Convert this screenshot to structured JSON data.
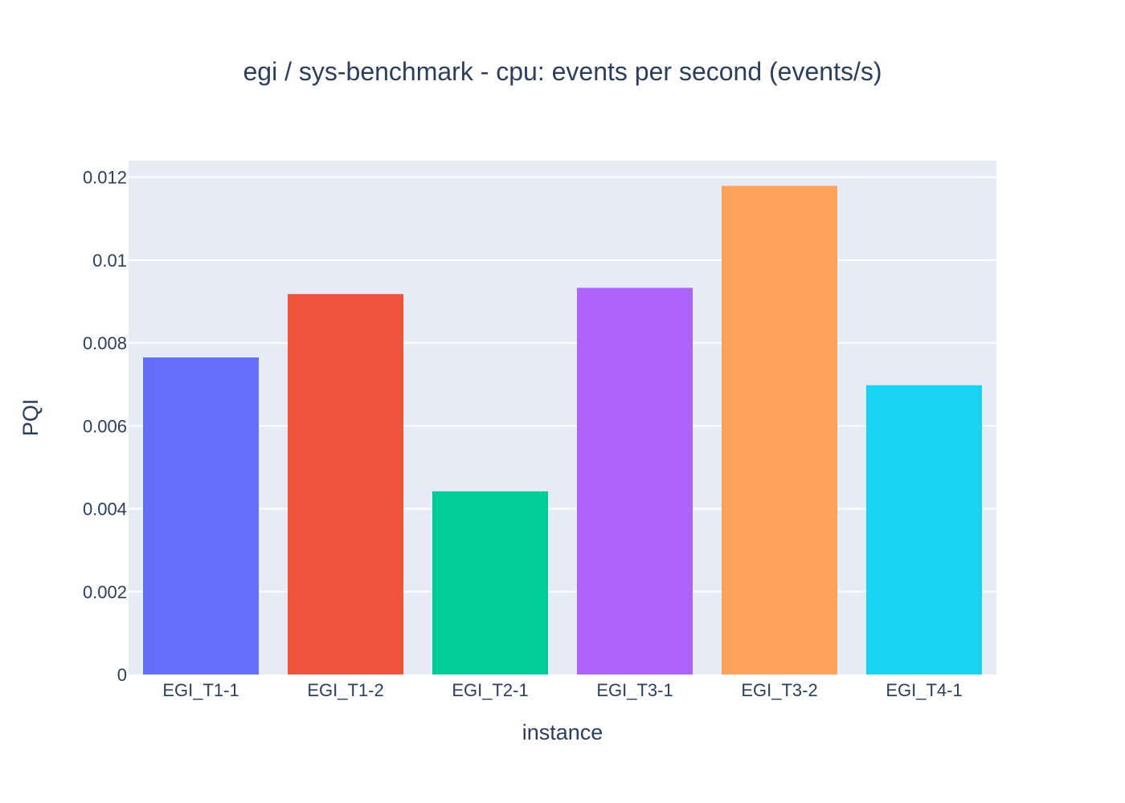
{
  "chart_data": {
    "type": "bar",
    "title": "egi / sys-benchmark - cpu: events per second (events/s)",
    "xlabel": "instance",
    "ylabel": "PQI",
    "categories": [
      "EGI_T1-1",
      "EGI_T1-2",
      "EGI_T2-1",
      "EGI_T3-1",
      "EGI_T3-2",
      "EGI_T4-1"
    ],
    "values": [
      0.00765,
      0.00918,
      0.00442,
      0.00933,
      0.01179,
      0.00698
    ],
    "colors": [
      "#636efa",
      "#ef553b",
      "#00cc96",
      "#ab63fa",
      "#ffa15a",
      "#19d3f3"
    ],
    "ylim": [
      0,
      0.0124
    ],
    "yticks": [
      0,
      0.002,
      0.004,
      0.006,
      0.008,
      0.01,
      0.012
    ],
    "ytick_labels": [
      "0",
      "0.002",
      "0.004",
      "0.006",
      "0.008",
      "0.01",
      "0.012"
    ],
    "grid": true,
    "plot_background": "#e5ecf6",
    "legend": "none"
  }
}
